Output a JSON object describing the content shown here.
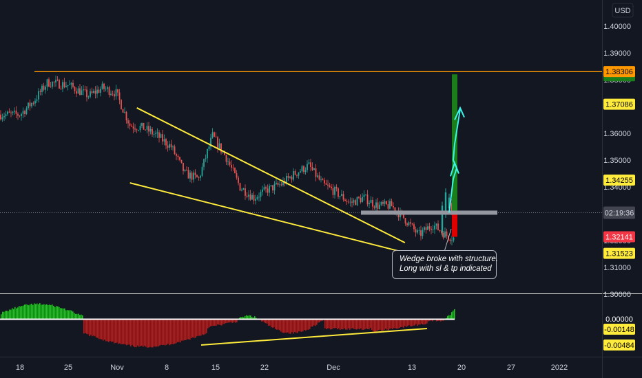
{
  "chart_data": [
    {
      "type": "candlestick",
      "price_axis": {
        "currency": "USD",
        "ylim": [
          1.295,
          1.4075
        ],
        "tick_labels": [
          "1.40000",
          "1.39000",
          "1.38000",
          "1.37000",
          "1.36000",
          "1.35000",
          "1.34000",
          "1.33000",
          "1.32000",
          "1.31000",
          "1.30000"
        ]
      },
      "time_axis": {
        "tick_labels": [
          "18",
          "25",
          "Nov",
          "8",
          "15",
          "22",
          "Dec",
          "13",
          "20",
          "27",
          "2022"
        ]
      },
      "current_time": "02:19:36",
      "price_labels": [
        {
          "value": "1.38306",
          "y": 1.38306,
          "bg": "#ff9800",
          "fg": "#000000",
          "role": "resistance-level"
        },
        {
          "value": "1.37086",
          "y": 1.37086,
          "bg": "#ffeb3b",
          "fg": "#000000",
          "role": "target-2"
        },
        {
          "value": "1.34255",
          "y": 1.34255,
          "bg": "#ffeb3b",
          "fg": "#000000",
          "role": "target-1"
        },
        {
          "value": "1.32141",
          "y": 1.32141,
          "bg": "#f23645",
          "fg": "#ffffff",
          "role": "stop-loss"
        },
        {
          "value": "1.31523",
          "y": 1.31523,
          "bg": "#ffeb3b",
          "fg": "#000000",
          "role": "wedge-low"
        }
      ],
      "horizontal_level": 1.38306,
      "wedge": {
        "upper": [
          {
            "date": "Nov 4",
            "price": 1.3695
          },
          {
            "date": "Dec 13",
            "price": 1.3192
          }
        ],
        "lower": [
          {
            "date": "Nov 3",
            "price": 1.3415
          },
          {
            "date": "Dec 13",
            "price": 1.3155
          }
        ]
      },
      "position": {
        "entry": 1.3304,
        "take_profit": 1.382,
        "stop_loss": 1.3214
      },
      "annotation": [
        "Wedge broke with structure.",
        "Long with sl & tp indicated"
      ]
    },
    {
      "type": "histogram",
      "name": "oscillator",
      "tick_labels": [
        {
          "value": "0.00000",
          "bg": "#131722",
          "fg": "#ffffff"
        },
        {
          "value": "-0.00148",
          "bg": "#ffeb3b",
          "fg": "#000000"
        },
        {
          "value": "-0.00484",
          "bg": "#ffeb3b",
          "fg": "#000000"
        }
      ]
    }
  ],
  "colors": {
    "background": "#131722",
    "candle_up": "#26a69a",
    "candle_down": "#ef5350",
    "wedge_lines": "#ffeb3b",
    "resistance_line": "#ff9800",
    "target_zone": "#1b7e1b",
    "stop_zone": "#e00000",
    "arrows": "#3df5e6",
    "histogram_positive": "#1ec51e",
    "histogram_negative": "#b71c1c"
  },
  "icons": [
    "pointer-arrow-icon",
    "path-arrow-icon"
  ]
}
